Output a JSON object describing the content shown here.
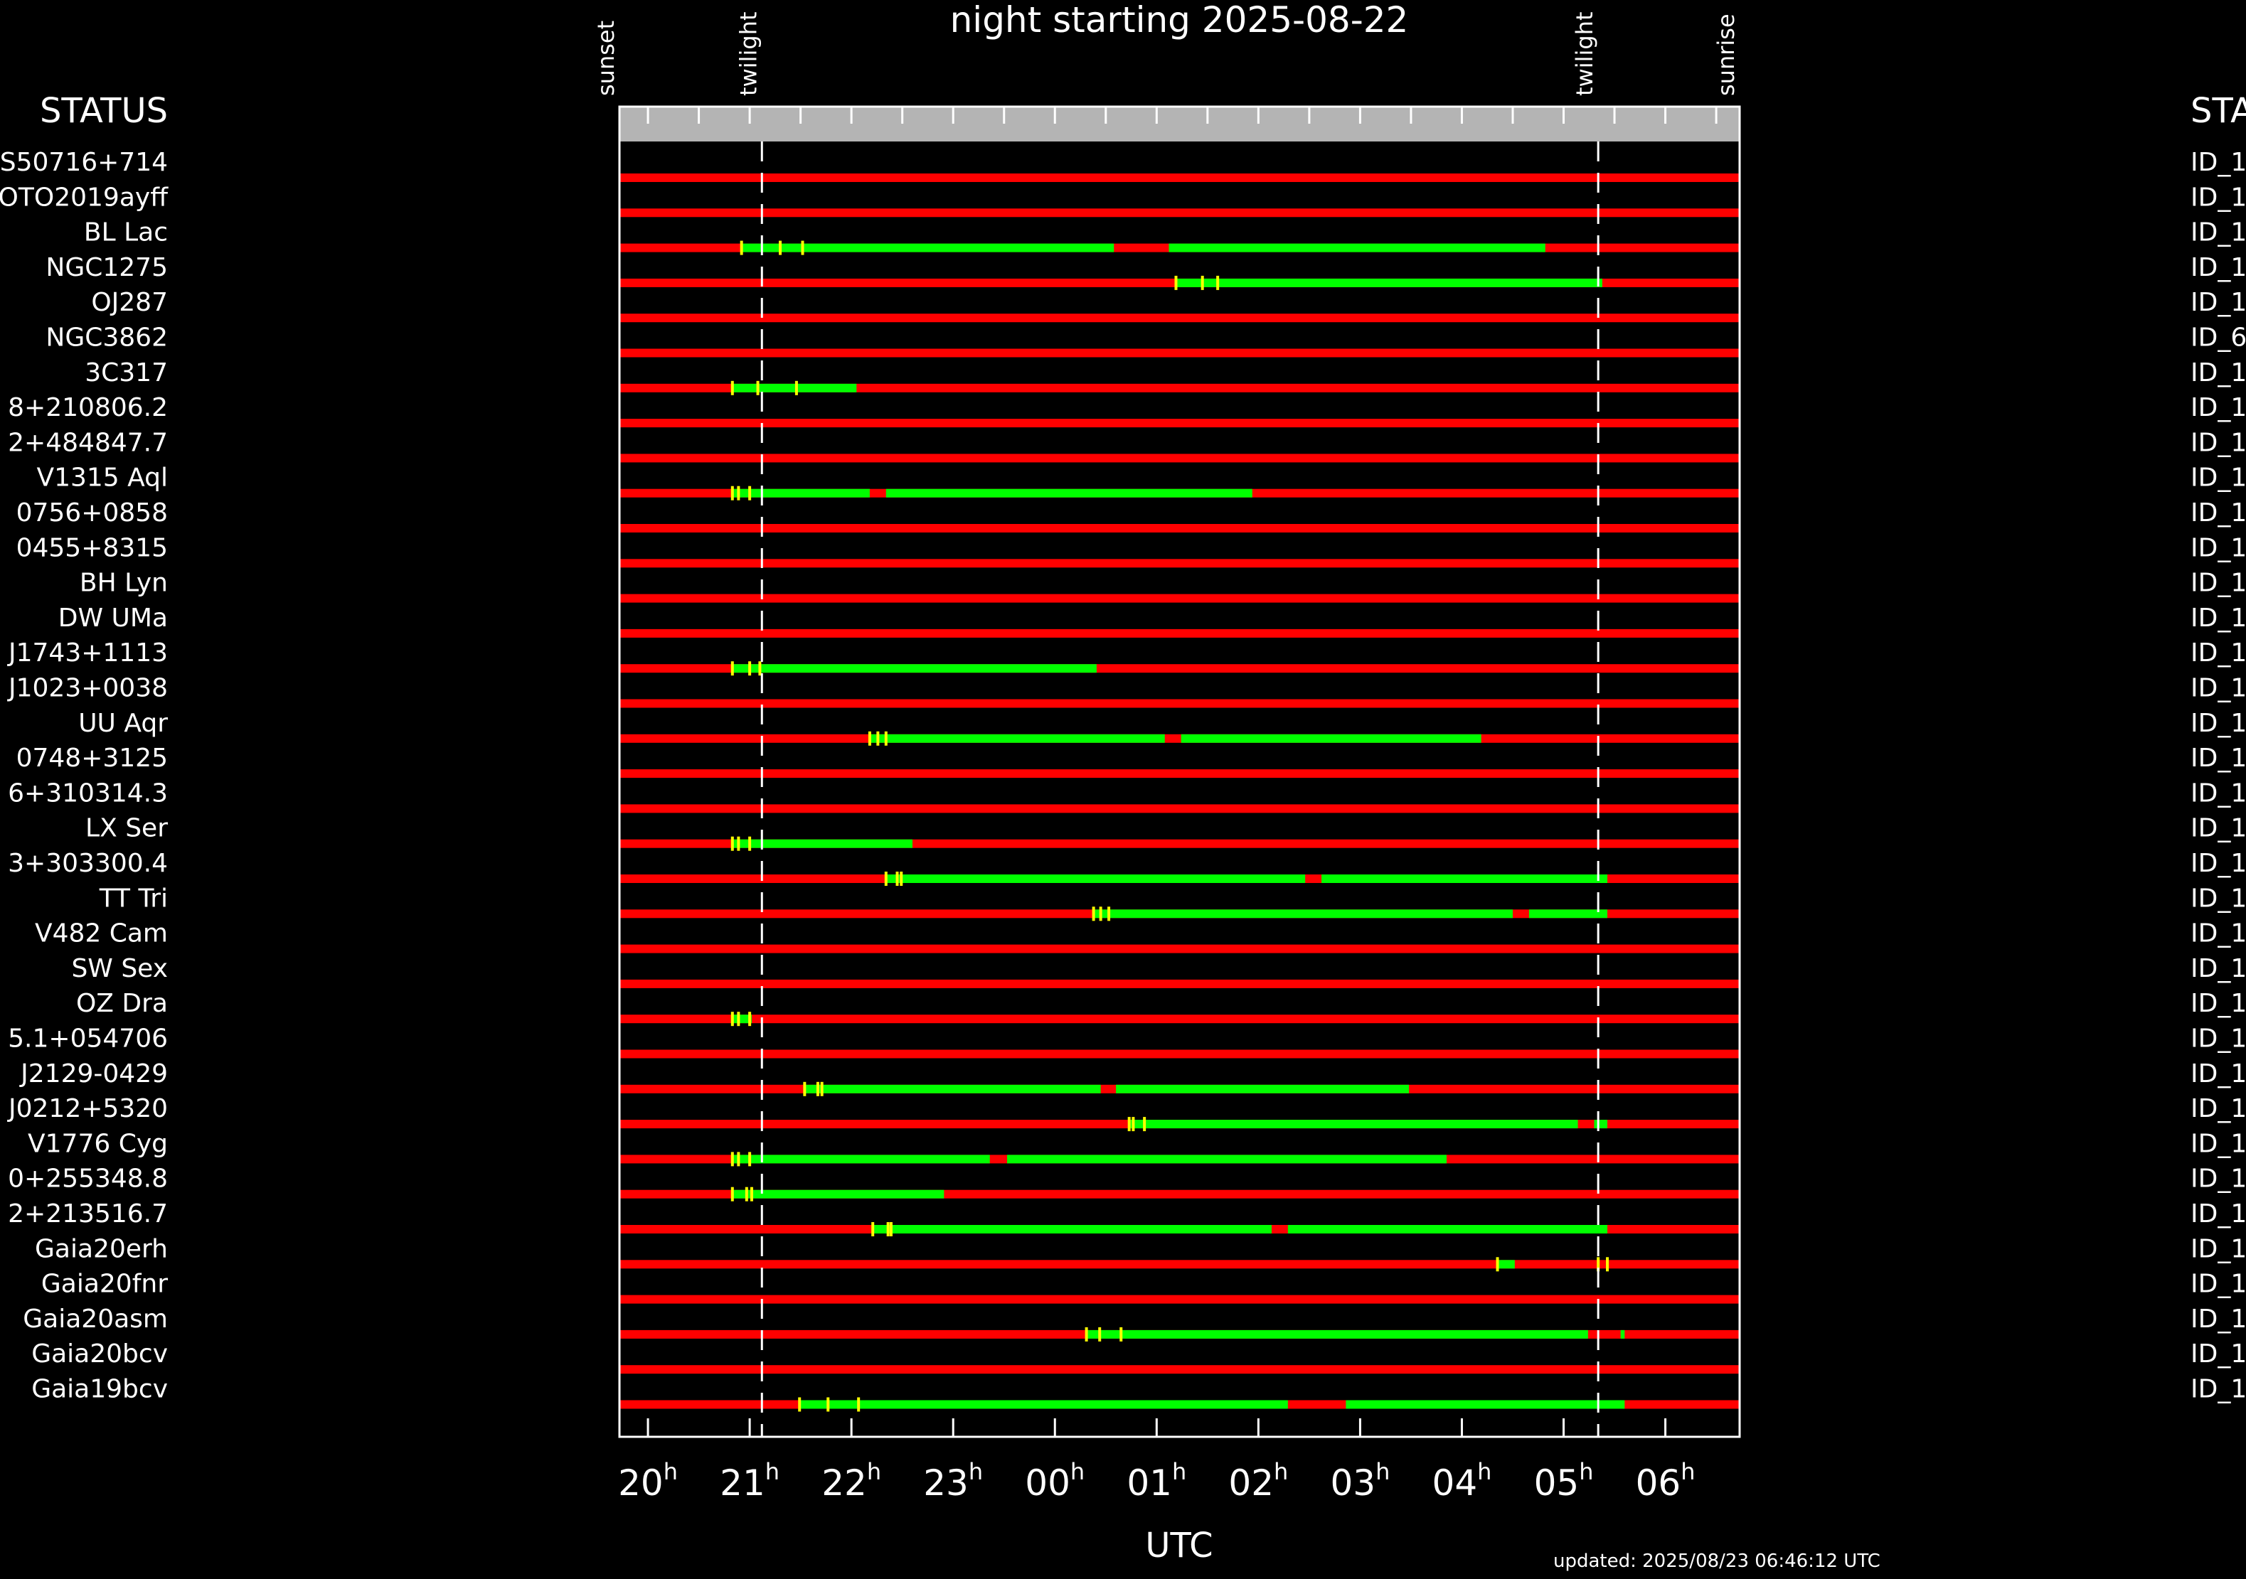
{
  "chart_data": {
    "type": "gantt",
    "title": "night starting 2025-08-22",
    "xlabel": "UTC",
    "status_header_left": "STATUS",
    "status_header_right": "STA",
    "updated": "updated: 2025/08/23 06:46:12 UTC",
    "x_unit": "hours UTC (hours after 00h, negative = evening of 2025-08-22)",
    "xlim": [
      -4.28,
      6.73
    ],
    "xticks": [
      {
        "v": -4,
        "h": "20",
        "sup": "h"
      },
      {
        "v": -3,
        "h": "21",
        "sup": "h"
      },
      {
        "v": -2,
        "h": "22",
        "sup": "h"
      },
      {
        "v": -1,
        "h": "23",
        "sup": "h"
      },
      {
        "v": 0,
        "h": "00",
        "sup": "h"
      },
      {
        "v": 1,
        "h": "01",
        "sup": "h"
      },
      {
        "v": 2,
        "h": "02",
        "sup": "h"
      },
      {
        "v": 3,
        "h": "03",
        "sup": "h"
      },
      {
        "v": 4,
        "h": "04",
        "sup": "h"
      },
      {
        "v": 5,
        "h": "05",
        "sup": "h"
      },
      {
        "v": 6,
        "h": "06",
        "sup": "h"
      }
    ],
    "events": [
      {
        "label": "sunset",
        "t": -4.28,
        "dashed": false
      },
      {
        "label": "twilight",
        "t": -2.88,
        "dashed": true
      },
      {
        "label": "twilight",
        "t": 5.34,
        "dashed": true
      },
      {
        "label": "sunrise",
        "t": 6.73,
        "dashed": false
      }
    ],
    "colors": {
      "unobservable": "#ff0000",
      "observable": "#00ff00",
      "marker": "#ffff00",
      "header_bar": "#b4b4b4",
      "frame": "#ffffff"
    },
    "rows": [
      {
        "name": "S50716+714",
        "id": "ID_1",
        "green": [],
        "marks": []
      },
      {
        "name": "OTO2019ayff",
        "id": "ID_1",
        "green": [],
        "marks": []
      },
      {
        "name": "BL Lac",
        "id": "ID_1",
        "green": [
          [
            -3.08,
            0.58
          ],
          [
            1.12,
            4.82
          ]
        ],
        "marks": [
          -3.08,
          -2.7,
          -2.48
        ]
      },
      {
        "name": "NGC1275",
        "id": "ID_1",
        "green": [
          [
            1.19,
            5.38
          ]
        ],
        "marks": [
          1.19,
          1.45,
          1.6
        ]
      },
      {
        "name": "OJ287",
        "id": "ID_1",
        "green": [],
        "marks": []
      },
      {
        "name": "NGC3862",
        "id": "ID_6",
        "green": [],
        "marks": []
      },
      {
        "name": "3C317",
        "id": "ID_1",
        "green": [
          [
            -3.17,
            -1.95
          ]
        ],
        "marks": [
          -3.17,
          -2.92,
          -2.54
        ]
      },
      {
        "name": "8+210806.2",
        "id": "ID_1",
        "green": [],
        "marks": []
      },
      {
        "name": "2+484847.7",
        "id": "ID_1",
        "green": [],
        "marks": []
      },
      {
        "name": "V1315 Aql",
        "id": "ID_1",
        "green": [
          [
            -3.17,
            -1.82
          ],
          [
            -1.66,
            1.94
          ]
        ],
        "marks": [
          -3.17,
          -3.11,
          -3.0
        ]
      },
      {
        "name": "0756+0858",
        "id": "ID_1",
        "green": [],
        "marks": []
      },
      {
        "name": "0455+8315",
        "id": "ID_1",
        "green": [],
        "marks": []
      },
      {
        "name": "BH Lyn",
        "id": "ID_1",
        "green": [],
        "marks": []
      },
      {
        "name": "DW UMa",
        "id": "ID_1",
        "green": [],
        "marks": []
      },
      {
        "name": "J1743+1113",
        "id": "ID_1",
        "green": [
          [
            -3.17,
            0.41
          ]
        ],
        "marks": [
          -3.17,
          -3.0,
          -2.9
        ]
      },
      {
        "name": "J1023+0038",
        "id": "ID_1",
        "green": [],
        "marks": []
      },
      {
        "name": "UU Aqr",
        "id": "ID_1",
        "green": [
          [
            -1.82,
            1.08
          ],
          [
            1.24,
            4.19
          ]
        ],
        "marks": [
          -1.82,
          -1.74,
          -1.66
        ]
      },
      {
        "name": "0748+3125",
        "id": "ID_1",
        "green": [],
        "marks": []
      },
      {
        "name": "6+310314.3",
        "id": "ID_1",
        "green": [],
        "marks": []
      },
      {
        "name": "LX Ser",
        "id": "ID_1",
        "green": [
          [
            -3.17,
            -1.4
          ]
        ],
        "marks": [
          -3.17,
          -3.11,
          -3.0
        ]
      },
      {
        "name": "3+303300.4",
        "id": "ID_1",
        "green": [
          [
            -1.66,
            2.46
          ],
          [
            2.62,
            5.43
          ]
        ],
        "marks": [
          -1.66,
          -1.55,
          -1.51
        ]
      },
      {
        "name": "TT Tri",
        "id": "ID_1",
        "green": [
          [
            0.38,
            4.5
          ],
          [
            4.66,
            5.43
          ]
        ],
        "marks": [
          0.38,
          0.45,
          0.53
        ]
      },
      {
        "name": "V482 Cam",
        "id": "ID_1",
        "green": [],
        "marks": []
      },
      {
        "name": "SW Sex",
        "id": "ID_1",
        "green": [],
        "marks": []
      },
      {
        "name": "OZ Dra",
        "id": "ID_1",
        "green": [
          [
            -3.17,
            -2.98
          ]
        ],
        "marks": [
          -3.17,
          -3.11,
          -3.0
        ]
      },
      {
        "name": "5.1+054706",
        "id": "ID_1",
        "green": [],
        "marks": []
      },
      {
        "name": "J2129-0429",
        "id": "ID_1",
        "green": [
          [
            -2.46,
            0.45
          ],
          [
            0.6,
            3.48
          ]
        ],
        "marks": [
          -2.46,
          -2.33,
          -2.29
        ]
      },
      {
        "name": "J0212+5320",
        "id": "ID_1",
        "green": [
          [
            0.73,
            5.14
          ],
          [
            5.3,
            5.43
          ]
        ],
        "marks": [
          0.73,
          0.77,
          0.88
        ]
      },
      {
        "name": "V1776 Cyg",
        "id": "ID_1",
        "green": [
          [
            -3.17,
            -0.64
          ],
          [
            -0.47,
            3.85
          ]
        ],
        "marks": [
          -3.17,
          -3.11,
          -3.0
        ]
      },
      {
        "name": "0+255348.8",
        "id": "ID_1",
        "green": [
          [
            -3.17,
            -1.09
          ]
        ],
        "marks": [
          -3.17,
          -3.03,
          -2.98
        ]
      },
      {
        "name": "2+213516.7",
        "id": "ID_1",
        "green": [
          [
            -1.79,
            2.13
          ],
          [
            2.29,
            5.43
          ]
        ],
        "marks": [
          -1.79,
          -1.64,
          -1.61
        ]
      },
      {
        "name": "Gaia20erh",
        "id": "ID_1",
        "green": [
          [
            4.35,
            4.52
          ]
        ],
        "marks": [
          4.35,
          5.34,
          5.43
        ]
      },
      {
        "name": "Gaia20fnr",
        "id": "ID_1",
        "green": [],
        "marks": []
      },
      {
        "name": "Gaia20asm",
        "id": "ID_1",
        "green": [
          [
            0.31,
            5.24
          ],
          [
            5.56,
            5.6
          ]
        ],
        "marks": [
          0.31,
          0.44,
          0.65
        ]
      },
      {
        "name": "Gaia20bcv",
        "id": "ID_1",
        "green": [],
        "marks": []
      },
      {
        "name": "Gaia19bcv",
        "id": "ID_1",
        "green": [
          [
            -2.51,
            2.29
          ],
          [
            2.86,
            5.6
          ]
        ],
        "marks": [
          -2.51,
          -2.23,
          -1.93
        ]
      }
    ]
  }
}
